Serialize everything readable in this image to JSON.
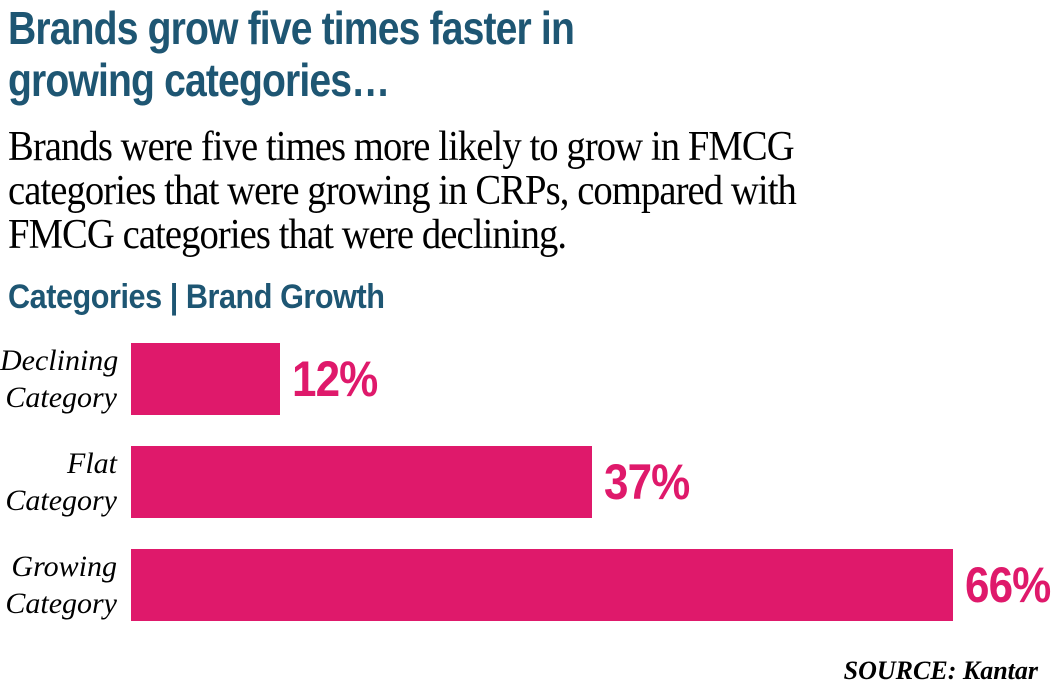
{
  "header": {
    "title_lines": [
      "Brands grow five times faster in",
      "growing categories…"
    ],
    "subtitle_lines": [
      "Brands were five times more likely to grow in FMCG",
      "categories that were growing in CRPs, compared with",
      "FMCG categories that were declining."
    ]
  },
  "chart": {
    "heading": "Categories | Brand Growth",
    "rows": [
      {
        "label_lines": [
          "Declining",
          "Category"
        ],
        "value": 12,
        "value_label": "12%"
      },
      {
        "label_lines": [
          "Flat",
          "Category"
        ],
        "value": 37,
        "value_label": "37%"
      },
      {
        "label_lines": [
          "Growing",
          "Category"
        ],
        "value": 66,
        "value_label": "66%"
      }
    ],
    "source": "SOURCE: Kantar"
  },
  "colors": {
    "heading_teal": "#1E5673",
    "bar_pink": "#DF196B",
    "text_black": "#000000"
  },
  "chart_data": {
    "type": "bar",
    "orientation": "horizontal",
    "title": "Categories | Brand Growth",
    "categories": [
      "Declining Category",
      "Flat Category",
      "Growing Category"
    ],
    "values": [
      12,
      37,
      66
    ],
    "value_labels": [
      "12%",
      "37%",
      "66%"
    ],
    "unit": "percent",
    "xlabel": "",
    "ylabel": "",
    "xlim": [
      0,
      70
    ],
    "grid": false,
    "legend": false,
    "bar_color": "#DF196B",
    "annotations": [
      "SOURCE: Kantar"
    ]
  }
}
